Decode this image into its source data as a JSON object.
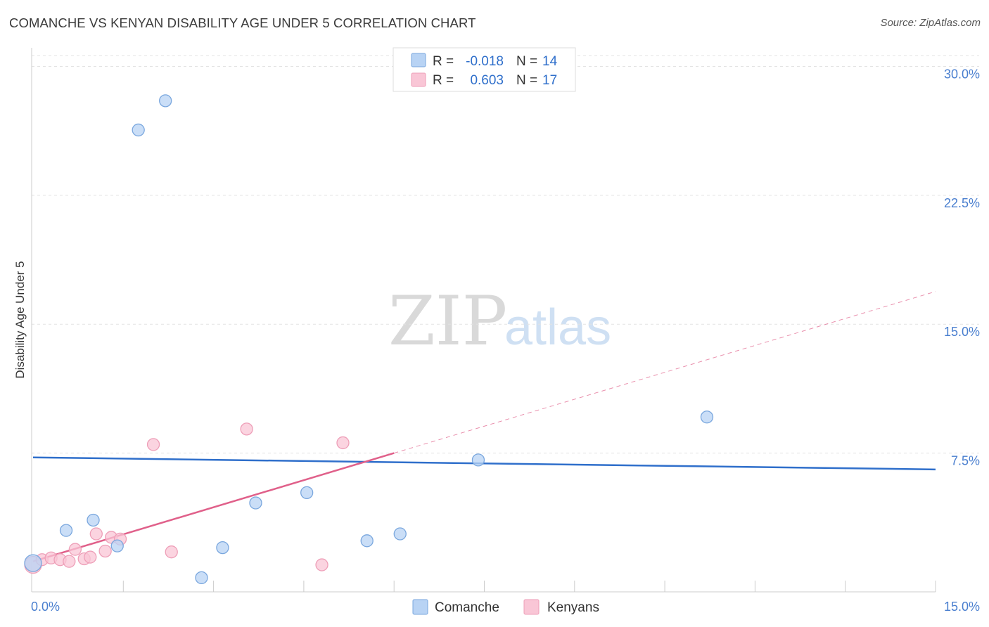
{
  "title": "COMANCHE VS KENYAN DISABILITY AGE UNDER 5 CORRELATION CHART",
  "source": "Source: ZipAtlas.com",
  "watermark": {
    "left": "ZIP",
    "right": "atlas"
  },
  "colors": {
    "comanche_fill": "#b8d3f4",
    "comanche_stroke": "#7aa7de",
    "comanche_line": "#2f6fcb",
    "kenyans_fill": "#f9c6d6",
    "kenyans_stroke": "#ee9fb8",
    "kenyans_line": "#e0608a",
    "tick_blue": "#4a7fcf"
  },
  "legend": {
    "rows": [
      {
        "series": "comanche",
        "r_label": "R =",
        "r_value": "-0.018",
        "n_label": "N =",
        "n_value": "14"
      },
      {
        "series": "kenyans",
        "r_label": "R =",
        "r_value": "0.603",
        "n_label": "N =",
        "n_value": "17"
      }
    ]
  },
  "chart_data": {
    "type": "scatter",
    "title": "COMANCHE VS KENYAN DISABILITY AGE UNDER 5 CORRELATION CHART",
    "xlabel": "",
    "ylabel": "Disability Age Under 5",
    "xlim": [
      0,
      15
    ],
    "ylim": [
      0,
      31
    ],
    "x_tick_labels": [
      "0.0%",
      "15.0%"
    ],
    "y_ticks": [
      7.5,
      15.0,
      22.5,
      30.0
    ],
    "y_tick_labels": [
      "7.5%",
      "15.0%",
      "22.5%",
      "30.0%"
    ],
    "grid": true,
    "legend_position": "top-center",
    "series": [
      {
        "name": "Comanche",
        "key": "comanche",
        "points": [
          [
            0.0,
            1.1
          ],
          [
            0.55,
            3.0
          ],
          [
            1.0,
            3.6
          ],
          [
            1.4,
            2.1
          ],
          [
            1.75,
            26.3
          ],
          [
            2.2,
            28.0
          ],
          [
            2.8,
            0.25
          ],
          [
            3.15,
            2.0
          ],
          [
            3.7,
            4.6
          ],
          [
            4.55,
            5.2
          ],
          [
            5.55,
            2.4
          ],
          [
            6.1,
            2.8
          ],
          [
            7.4,
            7.1
          ],
          [
            11.2,
            9.6
          ]
        ],
        "trend": {
          "x": [
            0.0,
            15.0
          ],
          "y": [
            7.25,
            6.55
          ]
        }
      },
      {
        "name": "Kenyans",
        "key": "kenyans",
        "points": [
          [
            0.0,
            1.0
          ],
          [
            0.15,
            1.3
          ],
          [
            0.3,
            1.4
          ],
          [
            0.45,
            1.3
          ],
          [
            0.6,
            1.2
          ],
          [
            0.7,
            1.9
          ],
          [
            0.85,
            1.35
          ],
          [
            0.95,
            1.45
          ],
          [
            1.05,
            2.8
          ],
          [
            1.2,
            1.8
          ],
          [
            1.3,
            2.6
          ],
          [
            1.45,
            2.5
          ],
          [
            2.0,
            8.0
          ],
          [
            2.3,
            1.75
          ],
          [
            3.55,
            8.9
          ],
          [
            4.8,
            1.0
          ],
          [
            5.15,
            8.1
          ]
        ],
        "trend": {
          "x": [
            0.0,
            6.0
          ],
          "y": [
            1.2,
            7.5
          ]
        },
        "trend_extension": {
          "x": [
            6.0,
            15.0
          ],
          "y": [
            7.5,
            16.9
          ]
        }
      }
    ]
  }
}
